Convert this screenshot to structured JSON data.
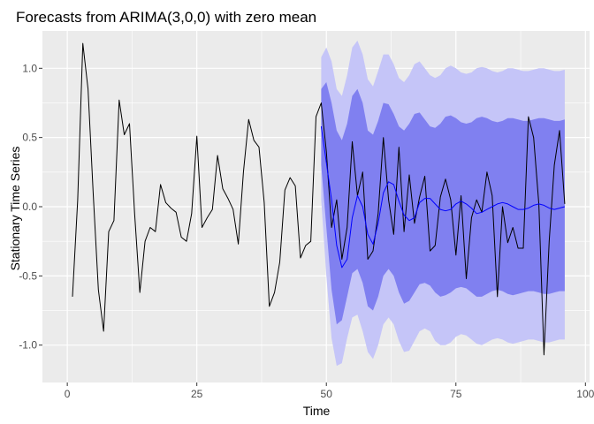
{
  "chart_data": {
    "type": "line",
    "title": "Forecasts from ARIMA(3,0,0) with zero mean",
    "xlabel": "Time",
    "ylabel": "Stationary Time Series",
    "xlim": [
      -4.8,
      100.8
    ],
    "ylim": [
      -1.27,
      1.27
    ],
    "x_ticks": [
      0,
      25,
      50,
      75,
      100
    ],
    "x_tick_labels": [
      "0",
      "25",
      "50",
      "75",
      "100"
    ],
    "y_ticks": [
      -1.0,
      -0.5,
      0.0,
      0.5,
      1.0
    ],
    "y_tick_labels": [
      "-1.0",
      "-0.5",
      "0.0",
      "0.5",
      "1.0"
    ],
    "grid": true,
    "legend": "none",
    "colors": {
      "panel_background": "#ebebeb",
      "grid_major": "#ffffff",
      "observed_line": "#000000",
      "forecast_line": "#0000ff",
      "interval_95": "#c5c5f8",
      "interval_80": "#8080f0"
    },
    "series": [
      {
        "role": "observed",
        "x": [
          1,
          2,
          3,
          4,
          5,
          6,
          7,
          8,
          9,
          10,
          11,
          12,
          13,
          14,
          15,
          16,
          17,
          18,
          19,
          20,
          21,
          22,
          23,
          24,
          25,
          26,
          27,
          28,
          29,
          30,
          31,
          32,
          33,
          34,
          35,
          36,
          37,
          38,
          39,
          40,
          41,
          42,
          43,
          44,
          45,
          46,
          47,
          48,
          49,
          50,
          51,
          52,
          53,
          54,
          55,
          56,
          57,
          58,
          59,
          60,
          61,
          62,
          63,
          64,
          65,
          66,
          67,
          68,
          69,
          70,
          71,
          72,
          73,
          74,
          75,
          76,
          77,
          78,
          79,
          80,
          81,
          82,
          83,
          84,
          85,
          86,
          87,
          88,
          89,
          90,
          91,
          92,
          93,
          94,
          95,
          96
        ],
        "y": [
          -0.65,
          0.05,
          1.18,
          0.85,
          0.1,
          -0.6,
          -0.9,
          -0.18,
          -0.1,
          0.77,
          0.52,
          0.6,
          -0.05,
          -0.62,
          -0.25,
          -0.15,
          -0.18,
          0.16,
          0.03,
          -0.01,
          -0.04,
          -0.22,
          -0.25,
          -0.05,
          0.51,
          -0.15,
          -0.08,
          -0.02,
          0.37,
          0.13,
          0.06,
          -0.02,
          -0.27,
          0.25,
          0.63,
          0.48,
          0.43,
          0.03,
          -0.72,
          -0.62,
          -0.4,
          0.12,
          0.21,
          0.15,
          -0.37,
          -0.28,
          -0.25,
          0.65,
          0.75,
          0.4,
          -0.15,
          0.05,
          -0.38,
          -0.15,
          0.47,
          0.08,
          0.25,
          -0.38,
          -0.32,
          -0.05,
          0.5,
          0.05,
          -0.2,
          0.43,
          -0.18,
          0.23,
          -0.12,
          0.07,
          0.22,
          -0.32,
          -0.28,
          0.07,
          0.2,
          0.05,
          -0.35,
          0.08,
          -0.52,
          -0.08,
          0.05,
          -0.04,
          0.25,
          0.08,
          -0.65,
          0.0,
          -0.26,
          -0.15,
          -0.3,
          -0.3,
          0.65,
          0.5,
          0.02,
          -1.07,
          -0.25,
          0.3,
          0.55,
          0.02
        ]
      },
      {
        "role": "forecast",
        "x": [
          49,
          50,
          51,
          52,
          53,
          54,
          55,
          56,
          57,
          58,
          59,
          60,
          61,
          62,
          63,
          64,
          65,
          66,
          67,
          68,
          69,
          70,
          71,
          72,
          73,
          74,
          75,
          76,
          77,
          78,
          79,
          80,
          81,
          82,
          83,
          84,
          85,
          86,
          87,
          88,
          89,
          90,
          91,
          92,
          93,
          94,
          95,
          96
        ],
        "y": [
          0.58,
          0.32,
          0.05,
          -0.28,
          -0.44,
          -0.38,
          -0.08,
          0.08,
          0.0,
          -0.2,
          -0.27,
          -0.12,
          0.1,
          0.18,
          0.16,
          0.04,
          -0.06,
          -0.1,
          -0.08,
          0.03,
          0.06,
          0.06,
          0.02,
          -0.02,
          -0.03,
          -0.02,
          0.02,
          0.04,
          0.02,
          -0.01,
          -0.05,
          -0.04,
          -0.02,
          0.0,
          0.02,
          0.03,
          0.02,
          0.0,
          -0.02,
          -0.02,
          -0.01,
          0.01,
          0.02,
          0.01,
          -0.01,
          -0.02,
          -0.01,
          0.0
        ]
      }
    ],
    "intervals": [
      {
        "level": "95%",
        "x": [
          49,
          50,
          51,
          52,
          53,
          54,
          55,
          56,
          57,
          58,
          59,
          60,
          61,
          62,
          63,
          64,
          65,
          66,
          67,
          68,
          69,
          70,
          71,
          72,
          73,
          74,
          75,
          76,
          77,
          78,
          79,
          80,
          81,
          82,
          83,
          84,
          85,
          86,
          87,
          88,
          89,
          90,
          91,
          92,
          93,
          94,
          95,
          96
        ],
        "upper": [
          1.08,
          1.15,
          1.05,
          0.85,
          0.8,
          0.95,
          1.15,
          1.2,
          1.1,
          0.92,
          0.87,
          0.98,
          1.1,
          1.1,
          1.03,
          0.93,
          0.9,
          0.95,
          1.03,
          1.05,
          1.0,
          0.95,
          0.93,
          0.95,
          1.0,
          1.02,
          1.0,
          0.97,
          0.96,
          0.97,
          1.0,
          1.01,
          1.0,
          0.98,
          0.97,
          0.98,
          1.0,
          1.0,
          0.99,
          0.98,
          0.98,
          0.99,
          1.0,
          1.0,
          0.99,
          0.98,
          0.98,
          0.99
        ],
        "lower": [
          0.05,
          -0.5,
          -0.95,
          -1.15,
          -1.13,
          -0.95,
          -0.8,
          -0.78,
          -0.9,
          -1.05,
          -1.1,
          -1.0,
          -0.85,
          -0.8,
          -0.85,
          -0.97,
          -1.05,
          -1.04,
          -0.97,
          -0.9,
          -0.88,
          -0.9,
          -0.97,
          -1.0,
          -1.0,
          -0.98,
          -0.94,
          -0.92,
          -0.93,
          -0.96,
          -0.99,
          -1.0,
          -0.98,
          -0.96,
          -0.95,
          -0.96,
          -0.98,
          -0.99,
          -0.98,
          -0.97,
          -0.96,
          -0.96,
          -0.97,
          -0.98,
          -0.98,
          -0.97,
          -0.96,
          -0.96
        ]
      },
      {
        "level": "80%",
        "x": [
          49,
          50,
          51,
          52,
          53,
          54,
          55,
          56,
          57,
          58,
          59,
          60,
          61,
          62,
          63,
          64,
          65,
          66,
          67,
          68,
          69,
          70,
          71,
          72,
          73,
          74,
          75,
          76,
          77,
          78,
          79,
          80,
          81,
          82,
          83,
          84,
          85,
          86,
          87,
          88,
          89,
          90,
          91,
          92,
          93,
          94,
          95,
          96
        ],
        "upper": [
          0.85,
          0.9,
          0.75,
          0.55,
          0.48,
          0.6,
          0.8,
          0.85,
          0.75,
          0.55,
          0.52,
          0.62,
          0.75,
          0.74,
          0.67,
          0.58,
          0.55,
          0.6,
          0.67,
          0.68,
          0.63,
          0.58,
          0.57,
          0.6,
          0.65,
          0.66,
          0.64,
          0.61,
          0.6,
          0.61,
          0.64,
          0.65,
          0.64,
          0.62,
          0.61,
          0.62,
          0.64,
          0.64,
          0.63,
          0.62,
          0.62,
          0.63,
          0.64,
          0.64,
          0.63,
          0.62,
          0.62,
          0.63
        ],
        "lower": [
          0.3,
          -0.15,
          -0.6,
          -0.85,
          -0.82,
          -0.65,
          -0.48,
          -0.45,
          -0.55,
          -0.72,
          -0.75,
          -0.65,
          -0.5,
          -0.45,
          -0.5,
          -0.62,
          -0.7,
          -0.68,
          -0.62,
          -0.56,
          -0.55,
          -0.57,
          -0.62,
          -0.65,
          -0.64,
          -0.62,
          -0.59,
          -0.58,
          -0.59,
          -0.62,
          -0.65,
          -0.65,
          -0.63,
          -0.61,
          -0.6,
          -0.61,
          -0.63,
          -0.64,
          -0.63,
          -0.62,
          -0.61,
          -0.61,
          -0.62,
          -0.63,
          -0.63,
          -0.62,
          -0.61,
          -0.61
        ]
      }
    ]
  }
}
